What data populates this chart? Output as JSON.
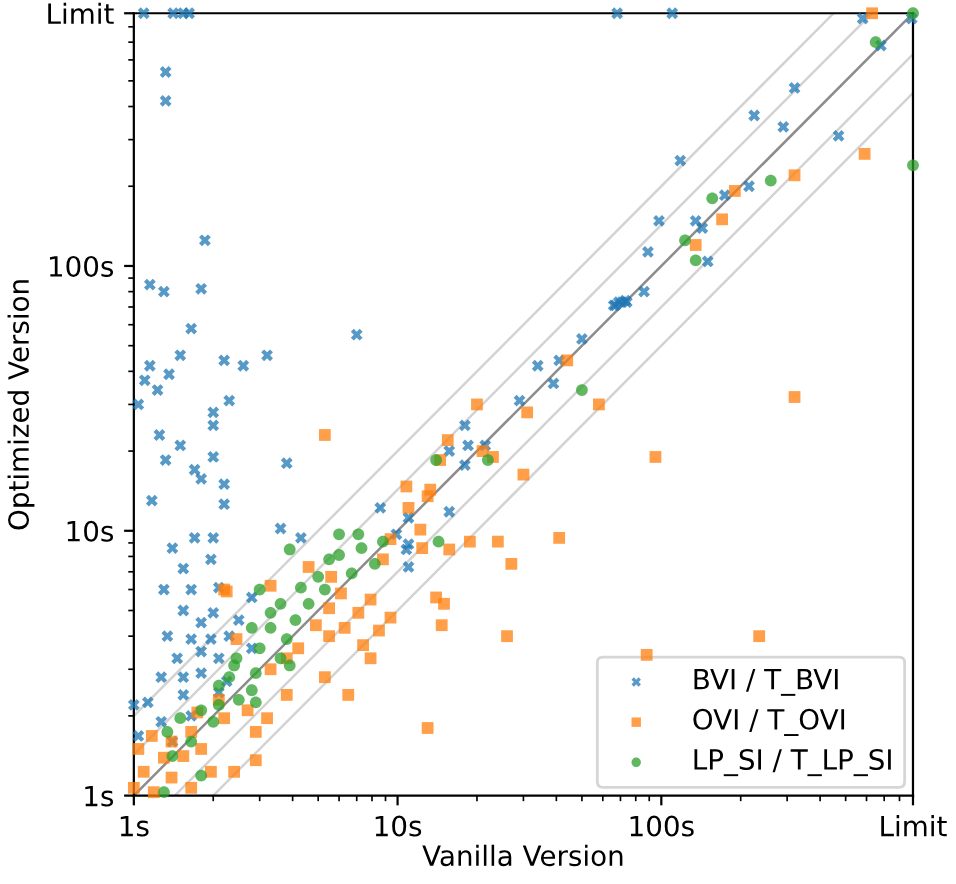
{
  "chart_data": {
    "type": "scatter",
    "xlabel": "Vanilla Version",
    "ylabel": "Optimized Version",
    "log": "xy",
    "xlim": [
      1,
      900
    ],
    "ylim": [
      1,
      900
    ],
    "xticks": [
      {
        "value": 1,
        "label": "1s"
      },
      {
        "value": 10,
        "label": "10s"
      },
      {
        "value": 100,
        "label": "100s"
      },
      {
        "value": 900,
        "label": "Limit"
      }
    ],
    "yticks": [
      {
        "value": 1,
        "label": "1s"
      },
      {
        "value": 10,
        "label": "10s"
      },
      {
        "value": 100,
        "label": "100s"
      },
      {
        "value": 900,
        "label": "Limit"
      }
    ],
    "grid": false,
    "legend": "bottom right",
    "series": [
      {
        "type": "line",
        "color": "#d3d3d3",
        "x": [
          1,
          450
        ],
        "values": [
          2,
          900
        ]
      },
      {
        "type": "line",
        "color": "#d3d3d3",
        "x": [
          1,
          630
        ],
        "values": [
          1.43,
          900
        ]
      },
      {
        "type": "line",
        "color": "#8c8c8c",
        "x": [
          1,
          900
        ],
        "values": [
          1,
          900
        ]
      },
      {
        "type": "line",
        "color": "#d3d3d3",
        "x": [
          1.43,
          900
        ],
        "values": [
          1,
          630
        ]
      },
      {
        "type": "line",
        "color": "#d3d3d3",
        "x": [
          2,
          900
        ],
        "values": [
          1,
          450
        ]
      },
      {
        "name": "BVI / T_BVI",
        "color": "#1f77b4",
        "marker": "cross",
        "x": [
          1.09,
          1.41,
          1.54,
          1.62,
          110,
          580,
          890,
          1.32,
          1.32,
          1.86,
          1.15,
          1.3,
          1.8,
          1.65,
          7.0,
          1.5,
          2.2,
          2.6,
          3.2,
          1.15,
          1.1,
          1.23,
          1.36,
          1.04,
          2.3,
          2.0,
          2.0,
          1.25,
          1.5,
          1.32,
          1.7,
          2.0,
          3.8,
          1.8,
          2.2,
          1.17,
          2.2,
          1.4,
          1.7,
          2.0,
          3.6,
          4.3,
          1.96,
          1.54,
          1.3,
          1.65,
          2.1,
          2.8,
          1.54,
          1.8,
          2.0,
          2.5,
          1.34,
          1.65,
          1.96,
          2.3,
          2.8,
          1.46,
          1.8,
          2.1,
          1.27,
          1.54,
          1.8,
          2.25,
          1.13,
          1.54,
          2.1,
          1.27,
          1.65,
          1.04,
          1.4,
          1.0,
          66,
          69,
          73,
          50,
          34,
          41,
          39,
          29,
          18,
          18.5,
          21.5,
          15.7,
          18,
          8.6,
          11,
          15.7,
          9.9,
          11,
          10.8,
          11,
          68,
          320,
          225,
          290,
          470,
          118,
          98,
          174,
          215,
          135,
          143,
          89,
          150,
          86,
          71,
          67,
          74,
          680
        ],
        "values": [
          900,
          900,
          900,
          900,
          900,
          860,
          860,
          540,
          420,
          125,
          85,
          80,
          82,
          58,
          55,
          46,
          44,
          42,
          46,
          42,
          37,
          34,
          39,
          30,
          31,
          28,
          25,
          23,
          21,
          18.5,
          17,
          19,
          18,
          15.7,
          15,
          13,
          12.6,
          8.6,
          9.4,
          9.4,
          10.2,
          9.4,
          7.8,
          7.2,
          6.0,
          6.0,
          6.1,
          5.6,
          5.0,
          4.5,
          4.9,
          4.6,
          4.0,
          3.9,
          3.9,
          4.0,
          3.6,
          3.3,
          3.5,
          3.3,
          2.8,
          2.8,
          2.9,
          2.7,
          2.25,
          2.4,
          2.45,
          1.9,
          2.0,
          1.68,
          1.6,
          2.2,
          71,
          73,
          74,
          53,
          42,
          44,
          36,
          31,
          25,
          21,
          21,
          20,
          17.7,
          12.2,
          11.2,
          11.8,
          9.7,
          8.9,
          8.5,
          7.3,
          900,
          470,
          370,
          335,
          310,
          250,
          148,
          185,
          200,
          148,
          139,
          113,
          104,
          80,
          73,
          71,
          73,
          680
        ]
      },
      {
        "name": "OVI / T_OVI",
        "color": "#ff7f0e",
        "marker": "square",
        "x": [
          630,
          590,
          320,
          190,
          170,
          135,
          58,
          320,
          95,
          235,
          88,
          44,
          20,
          31,
          15.5,
          14.5,
          21,
          23,
          30,
          10.8,
          13.3,
          13,
          11,
          12.2,
          9.4,
          12.4,
          15.7,
          18.8,
          24,
          41,
          27,
          8.8,
          14,
          15,
          14.7,
          26,
          8.5,
          9.4,
          13,
          5.3,
          4.6,
          3.3,
          2.25,
          5.6,
          6.1,
          7.9,
          7.1,
          5.5,
          6.3,
          4.9,
          7.4,
          5.5,
          7.9,
          4.2,
          5.3,
          6.5,
          3.3,
          2.45,
          3.8,
          2.1,
          2.7,
          2.2,
          2.9,
          3.2,
          3.8,
          1.74,
          1.65,
          1.39,
          1.17,
          1.04,
          1.3,
          1.54,
          1.8,
          1.09,
          1.39,
          1.65,
          1.19,
          2.9,
          2.4,
          1.96,
          1.0,
          2.2
        ],
        "values": [
          900,
          265,
          220,
          192,
          150,
          120,
          30,
          32,
          19,
          4.0,
          3.4,
          44,
          30,
          28,
          22,
          18.5,
          20,
          19,
          16.3,
          14.7,
          14.3,
          13.5,
          12.2,
          10.1,
          9.3,
          8.6,
          8.5,
          9.1,
          9.1,
          9.4,
          7.5,
          7.8,
          5.6,
          5.3,
          4.4,
          4.0,
          4.2,
          4.7,
          1.8,
          23,
          7.3,
          6.2,
          5.9,
          6.7,
          5.8,
          5.5,
          4.9,
          5.1,
          4.3,
          4.4,
          3.7,
          4.0,
          3.3,
          3.6,
          2.8,
          2.4,
          3.0,
          3.9,
          3.3,
          2.3,
          2.1,
          1.96,
          1.74,
          1.96,
          2.4,
          2.06,
          1.74,
          1.6,
          1.68,
          1.5,
          1.39,
          1.41,
          1.5,
          1.23,
          1.17,
          1.07,
          1.03,
          1.36,
          1.23,
          1.23,
          1.07,
          6.0
        ]
      },
      {
        "name": "LP_SI / T_LP_SI",
        "color": "#2ca02c",
        "marker": "circle",
        "x": [
          900,
          650,
          900,
          260,
          156,
          123,
          135,
          50,
          14,
          22,
          14.3,
          8.8,
          8.2,
          7.1,
          6.0,
          5.5,
          6.7,
          3.9,
          4.6,
          3.6,
          3.0,
          4.1,
          3.3,
          2.8,
          3.8,
          3.0,
          2.45,
          3.6,
          2.9,
          2.3,
          2.1,
          2.8,
          2.5,
          2.1,
          2.9,
          1.8,
          1.5,
          2.0,
          1.34,
          1.65,
          1.4,
          1.8,
          1.3,
          5.0,
          6.0,
          7.3,
          5.3,
          4.3,
          3.3,
          2.4,
          3.9
        ],
        "values": [
          900,
          700,
          240,
          210,
          180,
          125,
          105,
          34,
          18.5,
          18.5,
          9.1,
          9.1,
          7.5,
          9.7,
          8.1,
          7.8,
          6.9,
          8.5,
          5.3,
          5.3,
          6.0,
          4.6,
          4.3,
          4.3,
          3.9,
          3.6,
          3.3,
          3.3,
          2.9,
          2.8,
          2.6,
          2.5,
          2.3,
          2.2,
          2.25,
          2.1,
          1.96,
          1.9,
          1.74,
          1.6,
          1.41,
          1.19,
          1.03,
          6.7,
          9.7,
          8.6,
          6.0,
          6.1,
          4.9,
          3.1,
          3.1
        ]
      }
    ]
  }
}
